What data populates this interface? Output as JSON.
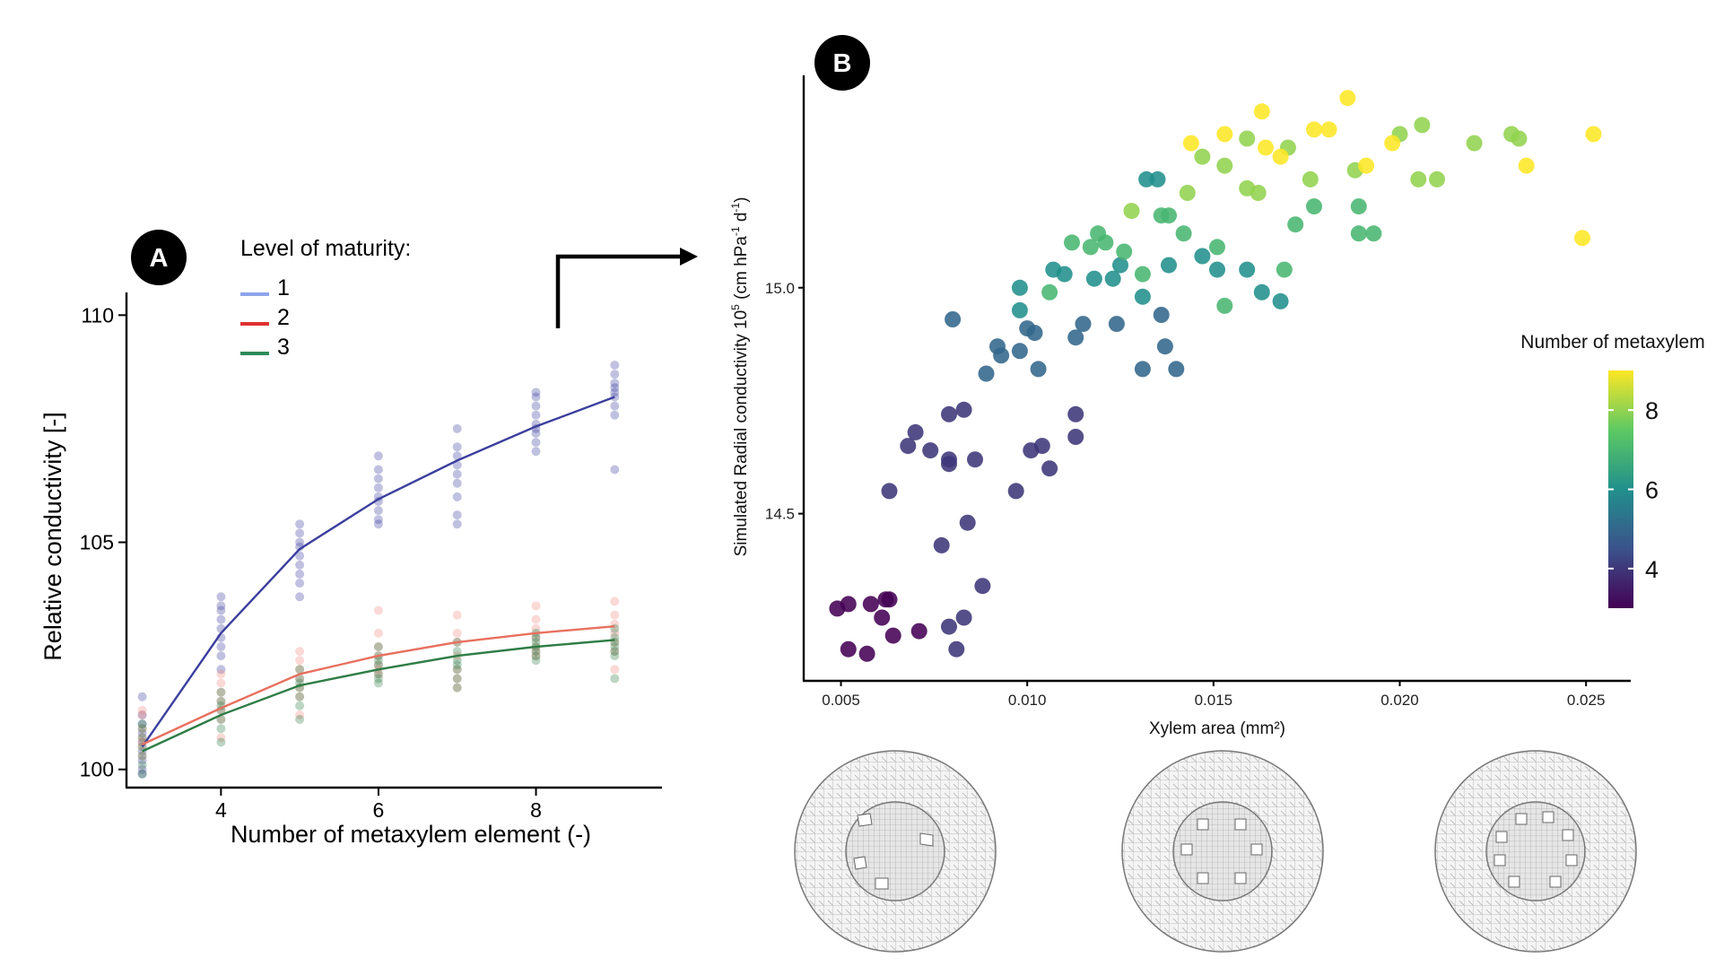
{
  "panel_labels": {
    "a": "A",
    "b": "B"
  },
  "chart_data": [
    {
      "type": "scatter",
      "panel": "A",
      "xlabel": "Number of metaxylem element (-)",
      "ylabel": "Relative conductivity [-]",
      "xlim": [
        2.8,
        9.6
      ],
      "ylim": [
        99.6,
        110.5
      ],
      "x_ticks": [
        4,
        6,
        8
      ],
      "y_ticks": [
        100,
        105,
        110
      ],
      "x_tick_labels": [
        "4",
        "6",
        "8"
      ],
      "y_tick_labels": [
        "100",
        "105",
        "110"
      ],
      "grid": false,
      "legend": {
        "title": "Level of maturity:",
        "placement": "top-left",
        "entries": [
          {
            "label": "1",
            "key_color": "#8ea4ec"
          },
          {
            "label": "2",
            "key_color": "#e03030"
          },
          {
            "label": "3",
            "key_color": "#2e8b57"
          }
        ]
      },
      "x": [
        3,
        4,
        5,
        6,
        7,
        8,
        9
      ],
      "series": [
        {
          "name": "1",
          "line_color": "#3b3f9e",
          "point_color": "#3b3f9e",
          "fit": [
            100.5,
            103.0,
            104.85,
            105.95,
            106.8,
            107.55,
            108.2
          ],
          "points": [
            [
              100.0,
              100.2,
              100.4,
              100.6,
              100.8,
              101.0,
              101.2,
              101.6,
              99.9
            ],
            [
              102.7,
              102.9,
              103.1,
              103.3,
              103.5,
              103.6,
              103.8,
              102.5,
              102.2
            ],
            [
              104.3,
              104.5,
              104.7,
              104.9,
              105.0,
              105.2,
              105.4,
              103.8,
              104.1
            ],
            [
              105.5,
              105.7,
              105.9,
              106.0,
              106.2,
              106.4,
              106.6,
              106.9,
              105.4
            ],
            [
              106.0,
              106.3,
              106.5,
              106.7,
              106.9,
              107.1,
              107.5,
              105.6,
              105.4
            ],
            [
              107.0,
              107.2,
              107.4,
              107.6,
              107.8,
              108.0,
              108.2,
              108.3,
              107.5
            ],
            [
              107.8,
              108.0,
              108.2,
              108.4,
              108.5,
              108.7,
              108.9,
              106.6,
              108.3
            ]
          ]
        },
        {
          "name": "2",
          "line_color": "#e8705f",
          "point_color": "#f08a7e",
          "fit": [
            100.55,
            101.35,
            102.1,
            102.5,
            102.8,
            103.0,
            103.15
          ],
          "points": [
            [
              100.3,
              100.5,
              100.7,
              100.9,
              101.2,
              101.3,
              100.6
            ],
            [
              101.1,
              101.3,
              101.5,
              101.7,
              101.9,
              102.1,
              100.7
            ],
            [
              101.6,
              101.8,
              102.0,
              102.2,
              102.4,
              102.6,
              101.2
            ],
            [
              102.1,
              102.3,
              102.5,
              102.7,
              103.0,
              103.5,
              102.2
            ],
            [
              102.2,
              102.5,
              102.8,
              103.0,
              103.4,
              102.0,
              101.8
            ],
            [
              102.5,
              102.7,
              102.9,
              103.1,
              103.3,
              103.6,
              102.6
            ],
            [
              102.6,
              102.8,
              103.0,
              103.2,
              103.4,
              103.7,
              102.2
            ]
          ]
        },
        {
          "name": "3",
          "line_color": "#2e7d46",
          "point_color": "#2e7d46",
          "fit": [
            100.4,
            101.2,
            101.85,
            102.2,
            102.5,
            102.7,
            102.85
          ],
          "points": [
            [
              100.1,
              100.3,
              100.5,
              100.7,
              100.9,
              101.0,
              99.9
            ],
            [
              100.9,
              101.1,
              101.3,
              101.5,
              101.7,
              100.6,
              101.4
            ],
            [
              101.4,
              101.6,
              101.8,
              102.0,
              102.2,
              101.1,
              101.9
            ],
            [
              101.9,
              102.1,
              102.3,
              102.5,
              102.7,
              102.0,
              102.4
            ],
            [
              102.0,
              102.2,
              102.4,
              102.6,
              102.8,
              101.8,
              102.3
            ],
            [
              102.4,
              102.6,
              102.8,
              103.0,
              102.7,
              102.5,
              102.9
            ],
            [
              102.5,
              102.7,
              102.9,
              103.1,
              102.0,
              102.6,
              102.8
            ]
          ]
        }
      ]
    },
    {
      "type": "scatter",
      "panel": "B",
      "xlabel": "Xylem area (mm²)",
      "ylabel_main": "Simulated Radial conductivity 10",
      "ylabel_exp": "5",
      "ylabel_unit_start": " (cm hPa",
      "ylabel_unit_exp1": "-1",
      "ylabel_unit_mid": " d",
      "ylabel_unit_exp2": "-1",
      "ylabel_unit_end": ")",
      "xlim": [
        0.004,
        0.0262
      ],
      "ylim": [
        14.13,
        15.47
      ],
      "x_ticks": [
        0.005,
        0.01,
        0.015,
        0.02,
        0.025
      ],
      "y_ticks": [
        14.5,
        15.0
      ],
      "x_tick_labels": [
        "0.005",
        "0.010",
        "0.015",
        "0.020",
        "0.025"
      ],
      "y_tick_labels": [
        "14.5",
        "15.0"
      ],
      "grid": false,
      "colorbar": {
        "title": "Number of metaxylem",
        "placement": "right",
        "range": [
          3,
          9
        ],
        "ticks": [
          4,
          6,
          8
        ],
        "tick_labels": [
          "4",
          "6",
          "8"
        ],
        "stops": [
          "#440154",
          "#3b528b",
          "#21908c",
          "#5dc963",
          "#fde725"
        ]
      },
      "points": [
        [
          0.0049,
          14.29,
          3
        ],
        [
          0.0052,
          14.3,
          3
        ],
        [
          0.0058,
          14.3,
          3
        ],
        [
          0.0062,
          14.31,
          3
        ],
        [
          0.0063,
          14.31,
          3
        ],
        [
          0.0061,
          14.27,
          3
        ],
        [
          0.0064,
          14.23,
          3
        ],
        [
          0.0052,
          14.2,
          3
        ],
        [
          0.0057,
          14.19,
          3
        ],
        [
          0.0071,
          14.24,
          3
        ],
        [
          0.0079,
          14.25,
          4
        ],
        [
          0.0083,
          14.27,
          4
        ],
        [
          0.0081,
          14.2,
          4
        ],
        [
          0.0077,
          14.43,
          4
        ],
        [
          0.0084,
          14.48,
          4
        ],
        [
          0.0088,
          14.34,
          4
        ],
        [
          0.0063,
          14.55,
          4
        ],
        [
          0.0068,
          14.65,
          4
        ],
        [
          0.007,
          14.68,
          4
        ],
        [
          0.0074,
          14.64,
          4
        ],
        [
          0.0079,
          14.62,
          4
        ],
        [
          0.0079,
          14.61,
          4
        ],
        [
          0.0086,
          14.62,
          4
        ],
        [
          0.0079,
          14.72,
          4
        ],
        [
          0.0083,
          14.73,
          4
        ],
        [
          0.0097,
          14.55,
          4
        ],
        [
          0.0101,
          14.64,
          4
        ],
        [
          0.0104,
          14.65,
          4
        ],
        [
          0.0106,
          14.6,
          4
        ],
        [
          0.0113,
          14.67,
          4
        ],
        [
          0.0113,
          14.72,
          4
        ],
        [
          0.008,
          14.93,
          5
        ],
        [
          0.0089,
          14.81,
          5
        ],
        [
          0.0092,
          14.87,
          5
        ],
        [
          0.0093,
          14.85,
          5
        ],
        [
          0.0098,
          14.86,
          5
        ],
        [
          0.01,
          14.91,
          5
        ],
        [
          0.0102,
          14.9,
          5
        ],
        [
          0.0103,
          14.82,
          5
        ],
        [
          0.0113,
          14.89,
          5
        ],
        [
          0.0115,
          14.92,
          5
        ],
        [
          0.0124,
          14.92,
          5
        ],
        [
          0.0131,
          14.82,
          5
        ],
        [
          0.0136,
          14.94,
          5
        ],
        [
          0.0137,
          14.87,
          5
        ],
        [
          0.014,
          14.82,
          5
        ],
        [
          0.0098,
          14.95,
          6
        ],
        [
          0.0098,
          15.0,
          6
        ],
        [
          0.0107,
          15.04,
          6
        ],
        [
          0.011,
          15.03,
          6
        ],
        [
          0.0118,
          15.02,
          6
        ],
        [
          0.0123,
          15.02,
          6
        ],
        [
          0.0125,
          15.05,
          6
        ],
        [
          0.0131,
          14.98,
          6
        ],
        [
          0.0138,
          15.05,
          6
        ],
        [
          0.0147,
          15.07,
          6
        ],
        [
          0.0151,
          15.04,
          6
        ],
        [
          0.0159,
          15.04,
          6
        ],
        [
          0.0163,
          14.99,
          6
        ],
        [
          0.0168,
          14.97,
          6
        ],
        [
          0.0132,
          15.24,
          6
        ],
        [
          0.0135,
          15.24,
          6
        ],
        [
          0.0119,
          15.12,
          7
        ],
        [
          0.0121,
          15.1,
          7
        ],
        [
          0.0126,
          15.08,
          7
        ],
        [
          0.0131,
          15.03,
          7
        ],
        [
          0.0136,
          15.16,
          7
        ],
        [
          0.0138,
          15.16,
          7
        ],
        [
          0.0142,
          15.12,
          7
        ],
        [
          0.0151,
          15.09,
          7
        ],
        [
          0.0153,
          14.96,
          7
        ],
        [
          0.0169,
          15.04,
          7
        ],
        [
          0.0172,
          15.14,
          7
        ],
        [
          0.0177,
          15.18,
          7
        ],
        [
          0.0189,
          15.12,
          7
        ],
        [
          0.0193,
          15.12,
          7
        ],
        [
          0.0189,
          15.18,
          7
        ],
        [
          0.0106,
          14.99,
          7
        ],
        [
          0.0117,
          15.09,
          7
        ],
        [
          0.0112,
          15.1,
          7
        ],
        [
          0.0128,
          15.17,
          8
        ],
        [
          0.0143,
          15.21,
          8
        ],
        [
          0.0147,
          15.29,
          8
        ],
        [
          0.0153,
          15.27,
          8
        ],
        [
          0.0159,
          15.22,
          8
        ],
        [
          0.0162,
          15.21,
          8
        ],
        [
          0.0176,
          15.24,
          8
        ],
        [
          0.0188,
          15.26,
          8
        ],
        [
          0.0159,
          15.33,
          8
        ],
        [
          0.017,
          15.31,
          8
        ],
        [
          0.02,
          15.34,
          8
        ],
        [
          0.0205,
          15.24,
          8
        ],
        [
          0.021,
          15.24,
          8
        ],
        [
          0.022,
          15.32,
          8
        ],
        [
          0.023,
          15.34,
          8
        ],
        [
          0.0232,
          15.33,
          8
        ],
        [
          0.0206,
          15.36,
          8
        ],
        [
          0.0144,
          15.32,
          9
        ],
        [
          0.0153,
          15.34,
          9
        ],
        [
          0.0163,
          15.39,
          9
        ],
        [
          0.0164,
          15.31,
          9
        ],
        [
          0.0168,
          15.29,
          9
        ],
        [
          0.0177,
          15.35,
          9
        ],
        [
          0.0181,
          15.35,
          9
        ],
        [
          0.0186,
          15.42,
          9
        ],
        [
          0.0191,
          15.27,
          9
        ],
        [
          0.0198,
          15.32,
          9
        ],
        [
          0.0234,
          15.27,
          9
        ],
        [
          0.0249,
          15.11,
          9
        ],
        [
          0.0252,
          15.34,
          9
        ]
      ]
    }
  ]
}
